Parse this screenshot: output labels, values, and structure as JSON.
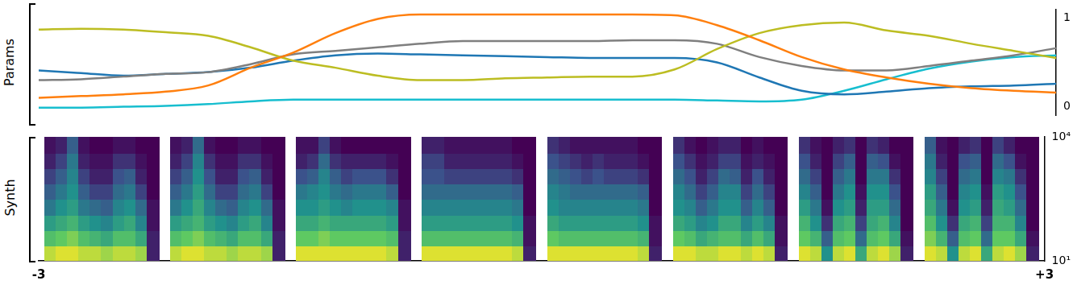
{
  "chart_data": [
    {
      "type": "line",
      "y_label": "Params",
      "tick_labels": "y",
      "x": [
        -3,
        -2.75,
        -2.5,
        -2.25,
        -2,
        -1.75,
        -1.5,
        -1.25,
        -1,
        -0.75,
        -0.5,
        -0.25,
        0,
        0.25,
        0.5,
        0.75,
        1,
        1.25,
        1.5,
        1.75,
        2,
        2.25,
        2.5,
        2.75,
        3
      ],
      "xlim": [
        -3,
        3
      ],
      "ylim": [
        -0.1,
        1.1
      ],
      "yticks": [
        0,
        1
      ],
      "series": [
        {
          "color": "#ff7f0e",
          "values": [
            0.1,
            0.12,
            0.14,
            0.17,
            0.24,
            0.44,
            0.61,
            0.83,
            0.99,
            1.04,
            1.04,
            1.04,
            1.04,
            1.04,
            1.04,
            1.03,
            0.92,
            0.75,
            0.56,
            0.42,
            0.33,
            0.26,
            0.21,
            0.18,
            0.16
          ]
        },
        {
          "color": "#bcbd22",
          "values": [
            0.87,
            0.88,
            0.87,
            0.84,
            0.8,
            0.67,
            0.52,
            0.44,
            0.35,
            0.3,
            0.3,
            0.32,
            0.33,
            0.34,
            0.34,
            0.42,
            0.65,
            0.83,
            0.92,
            0.95,
            0.86,
            0.8,
            0.71,
            0.63,
            0.55
          ]
        },
        {
          "color": "#7f7f7f",
          "values": [
            0.3,
            0.31,
            0.34,
            0.37,
            0.39,
            0.48,
            0.59,
            0.63,
            0.67,
            0.71,
            0.74,
            0.74,
            0.74,
            0.74,
            0.75,
            0.75,
            0.71,
            0.56,
            0.46,
            0.41,
            0.41,
            0.46,
            0.52,
            0.58,
            0.66
          ]
        },
        {
          "color": "#1f77b4",
          "values": [
            0.41,
            0.38,
            0.35,
            0.37,
            0.39,
            0.44,
            0.52,
            0.58,
            0.6,
            0.59,
            0.58,
            0.57,
            0.56,
            0.55,
            0.55,
            0.55,
            0.5,
            0.33,
            0.18,
            0.14,
            0.17,
            0.21,
            0.23,
            0.24,
            0.26
          ]
        },
        {
          "color": "#17becf",
          "values": [
            -0.01,
            -0.01,
            0.0,
            0.01,
            0.03,
            0.06,
            0.08,
            0.08,
            0.08,
            0.08,
            0.08,
            0.08,
            0.08,
            0.08,
            0.08,
            0.08,
            0.07,
            0.06,
            0.08,
            0.18,
            0.31,
            0.43,
            0.51,
            0.56,
            0.58
          ]
        }
      ]
    },
    {
      "type": "heatmap",
      "y_label": "Synth",
      "log": "y",
      "xlim": [
        -3,
        3
      ],
      "xticks": [
        -3,
        {
          "value": 3,
          "label": "+3"
        }
      ],
      "ylim": [
        10,
        10000
      ],
      "yticks": [
        {
          "value": 10,
          "label": "10¹"
        },
        {
          "value": 10000,
          "label": "10⁴"
        }
      ],
      "panels": [
        {
          "x": -2.625,
          "cells": [
            [
              0.9,
              0.95,
              0.95,
              0.9,
              0.9,
              0.85,
              0.9,
              0.9,
              0.85,
              0.1
            ],
            [
              0.7,
              0.75,
              0.8,
              0.7,
              0.65,
              0.6,
              0.7,
              0.7,
              0.6,
              0.1
            ],
            [
              0.55,
              0.6,
              0.65,
              0.55,
              0.5,
              0.45,
              0.55,
              0.6,
              0.45,
              0.05
            ],
            [
              0.4,
              0.5,
              0.55,
              0.4,
              0.35,
              0.3,
              0.45,
              0.5,
              0.35,
              0.05
            ],
            [
              0.3,
              0.4,
              0.5,
              0.3,
              0.2,
              0.2,
              0.35,
              0.4,
              0.2,
              0.0
            ],
            [
              0.2,
              0.3,
              0.45,
              0.2,
              0.1,
              0.1,
              0.25,
              0.3,
              0.1,
              0.0
            ],
            [
              0.1,
              0.2,
              0.4,
              0.1,
              0.05,
              0.05,
              0.15,
              0.15,
              0.05,
              0.0
            ],
            [
              0.05,
              0.1,
              0.3,
              0.05,
              0.0,
              0.0,
              0.05,
              0.05,
              0.0,
              0.0
            ]
          ]
        },
        {
          "x": -1.875,
          "cells": [
            [
              0.9,
              0.95,
              0.95,
              0.9,
              0.9,
              0.85,
              0.9,
              0.9,
              0.85,
              0.1
            ],
            [
              0.7,
              0.75,
              0.8,
              0.7,
              0.65,
              0.6,
              0.7,
              0.7,
              0.6,
              0.1
            ],
            [
              0.55,
              0.6,
              0.65,
              0.55,
              0.5,
              0.45,
              0.55,
              0.6,
              0.45,
              0.05
            ],
            [
              0.4,
              0.5,
              0.6,
              0.45,
              0.35,
              0.3,
              0.45,
              0.5,
              0.35,
              0.05
            ],
            [
              0.3,
              0.4,
              0.55,
              0.35,
              0.2,
              0.2,
              0.35,
              0.4,
              0.2,
              0.0
            ],
            [
              0.2,
              0.3,
              0.5,
              0.25,
              0.1,
              0.1,
              0.25,
              0.3,
              0.1,
              0.0
            ],
            [
              0.1,
              0.2,
              0.45,
              0.15,
              0.05,
              0.05,
              0.15,
              0.15,
              0.05,
              0.0
            ],
            [
              0.05,
              0.1,
              0.35,
              0.05,
              0.0,
              0.0,
              0.05,
              0.05,
              0.0,
              0.0
            ]
          ]
        },
        {
          "x": -1.125,
          "cells": [
            [
              0.95,
              0.95,
              0.95,
              0.95,
              0.95,
              0.95,
              0.95,
              0.95,
              0.9,
              0.1
            ],
            [
              0.75,
              0.75,
              0.8,
              0.75,
              0.75,
              0.75,
              0.75,
              0.75,
              0.7,
              0.1
            ],
            [
              0.6,
              0.6,
              0.65,
              0.6,
              0.6,
              0.6,
              0.6,
              0.6,
              0.55,
              0.05
            ],
            [
              0.5,
              0.5,
              0.55,
              0.5,
              0.45,
              0.5,
              0.5,
              0.5,
              0.45,
              0.05
            ],
            [
              0.4,
              0.45,
              0.5,
              0.4,
              0.35,
              0.4,
              0.4,
              0.4,
              0.3,
              0.0
            ],
            [
              0.25,
              0.3,
              0.45,
              0.3,
              0.2,
              0.25,
              0.25,
              0.25,
              0.15,
              0.0
            ],
            [
              0.1,
              0.15,
              0.35,
              0.15,
              0.1,
              0.1,
              0.1,
              0.1,
              0.05,
              0.0
            ],
            [
              0.05,
              0.05,
              0.2,
              0.05,
              0.0,
              0.0,
              0.0,
              0.0,
              0.0,
              0.0
            ]
          ]
        },
        {
          "x": -0.375,
          "cells": [
            [
              0.95,
              0.95,
              0.95,
              0.95,
              0.95,
              0.95,
              0.95,
              0.95,
              0.9,
              0.1
            ],
            [
              0.7,
              0.7,
              0.7,
              0.7,
              0.7,
              0.7,
              0.7,
              0.7,
              0.65,
              0.05
            ],
            [
              0.55,
              0.55,
              0.55,
              0.55,
              0.55,
              0.55,
              0.55,
              0.55,
              0.5,
              0.05
            ],
            [
              0.45,
              0.45,
              0.45,
              0.45,
              0.45,
              0.45,
              0.45,
              0.45,
              0.4,
              0.0
            ],
            [
              0.35,
              0.35,
              0.35,
              0.35,
              0.35,
              0.35,
              0.35,
              0.35,
              0.3,
              0.0
            ],
            [
              0.25,
              0.25,
              0.2,
              0.2,
              0.2,
              0.2,
              0.2,
              0.2,
              0.15,
              0.0
            ],
            [
              0.2,
              0.2,
              0.1,
              0.1,
              0.1,
              0.1,
              0.1,
              0.1,
              0.05,
              0.0
            ],
            [
              0.1,
              0.1,
              0.05,
              0.05,
              0.05,
              0.05,
              0.05,
              0.05,
              0.0,
              0.0
            ]
          ]
        },
        {
          "x": 0.375,
          "cells": [
            [
              0.95,
              0.95,
              0.95,
              0.95,
              0.95,
              0.95,
              0.95,
              0.95,
              0.9,
              0.1
            ],
            [
              0.75,
              0.7,
              0.7,
              0.7,
              0.7,
              0.7,
              0.7,
              0.7,
              0.65,
              0.05
            ],
            [
              0.6,
              0.55,
              0.55,
              0.55,
              0.55,
              0.55,
              0.55,
              0.55,
              0.5,
              0.05
            ],
            [
              0.5,
              0.45,
              0.45,
              0.45,
              0.45,
              0.45,
              0.45,
              0.45,
              0.4,
              0.0
            ],
            [
              0.45,
              0.4,
              0.35,
              0.35,
              0.35,
              0.35,
              0.35,
              0.35,
              0.3,
              0.0
            ],
            [
              0.35,
              0.3,
              0.25,
              0.2,
              0.25,
              0.2,
              0.2,
              0.2,
              0.15,
              0.0
            ],
            [
              0.25,
              0.2,
              0.15,
              0.1,
              0.15,
              0.1,
              0.1,
              0.1,
              0.05,
              0.0
            ],
            [
              0.15,
              0.1,
              0.05,
              0.05,
              0.05,
              0.05,
              0.05,
              0.05,
              0.0,
              0.0
            ]
          ]
        },
        {
          "x": 1.125,
          "cells": [
            [
              0.95,
              0.95,
              0.9,
              0.9,
              0.95,
              0.95,
              0.9,
              0.95,
              0.9,
              0.1
            ],
            [
              0.75,
              0.7,
              0.6,
              0.65,
              0.7,
              0.7,
              0.6,
              0.7,
              0.6,
              0.05
            ],
            [
              0.6,
              0.55,
              0.45,
              0.5,
              0.6,
              0.6,
              0.45,
              0.55,
              0.45,
              0.05
            ],
            [
              0.5,
              0.45,
              0.3,
              0.4,
              0.5,
              0.5,
              0.3,
              0.45,
              0.3,
              0.0
            ],
            [
              0.45,
              0.35,
              0.2,
              0.3,
              0.45,
              0.45,
              0.2,
              0.35,
              0.2,
              0.0
            ],
            [
              0.35,
              0.25,
              0.1,
              0.2,
              0.35,
              0.3,
              0.1,
              0.25,
              0.1,
              0.0
            ],
            [
              0.25,
              0.15,
              0.05,
              0.1,
              0.2,
              0.2,
              0.05,
              0.1,
              0.05,
              0.0
            ],
            [
              0.15,
              0.05,
              0.0,
              0.05,
              0.1,
              0.1,
              0.0,
              0.05,
              0.0,
              0.0
            ]
          ]
        },
        {
          "x": 1.875,
          "cells": [
            [
              0.95,
              0.9,
              0.5,
              0.9,
              0.95,
              0.6,
              0.9,
              0.95,
              0.85,
              0.1
            ],
            [
              0.75,
              0.65,
              0.3,
              0.7,
              0.75,
              0.35,
              0.7,
              0.75,
              0.6,
              0.05
            ],
            [
              0.65,
              0.5,
              0.15,
              0.6,
              0.65,
              0.2,
              0.6,
              0.65,
              0.45,
              0.0
            ],
            [
              0.55,
              0.4,
              0.05,
              0.5,
              0.55,
              0.1,
              0.55,
              0.55,
              0.35,
              0.0
            ],
            [
              0.45,
              0.3,
              0.0,
              0.4,
              0.5,
              0.05,
              0.5,
              0.5,
              0.25,
              0.0
            ],
            [
              0.35,
              0.2,
              0.0,
              0.3,
              0.4,
              0.0,
              0.4,
              0.4,
              0.15,
              0.0
            ],
            [
              0.25,
              0.1,
              0.0,
              0.2,
              0.3,
              0.0,
              0.3,
              0.25,
              0.05,
              0.0
            ],
            [
              0.15,
              0.05,
              0.0,
              0.1,
              0.15,
              0.0,
              0.15,
              0.1,
              0.0,
              0.0
            ]
          ]
        },
        {
          "x": 2.625,
          "cells": [
            [
              0.95,
              0.9,
              0.5,
              0.9,
              0.95,
              0.6,
              0.9,
              0.95,
              0.85,
              0.1
            ],
            [
              0.8,
              0.65,
              0.3,
              0.7,
              0.75,
              0.35,
              0.75,
              0.75,
              0.6,
              0.05
            ],
            [
              0.7,
              0.5,
              0.15,
              0.6,
              0.65,
              0.2,
              0.65,
              0.65,
              0.45,
              0.0
            ],
            [
              0.6,
              0.4,
              0.05,
              0.5,
              0.55,
              0.1,
              0.6,
              0.55,
              0.35,
              0.0
            ],
            [
              0.55,
              0.3,
              0.0,
              0.45,
              0.5,
              0.05,
              0.55,
              0.5,
              0.25,
              0.0
            ],
            [
              0.45,
              0.2,
              0.0,
              0.35,
              0.4,
              0.0,
              0.45,
              0.4,
              0.15,
              0.0
            ],
            [
              0.4,
              0.1,
              0.0,
              0.25,
              0.3,
              0.0,
              0.35,
              0.25,
              0.05,
              0.0
            ],
            [
              0.3,
              0.05,
              0.0,
              0.1,
              0.15,
              0.0,
              0.2,
              0.1,
              0.0,
              0.0
            ]
          ]
        }
      ]
    }
  ]
}
